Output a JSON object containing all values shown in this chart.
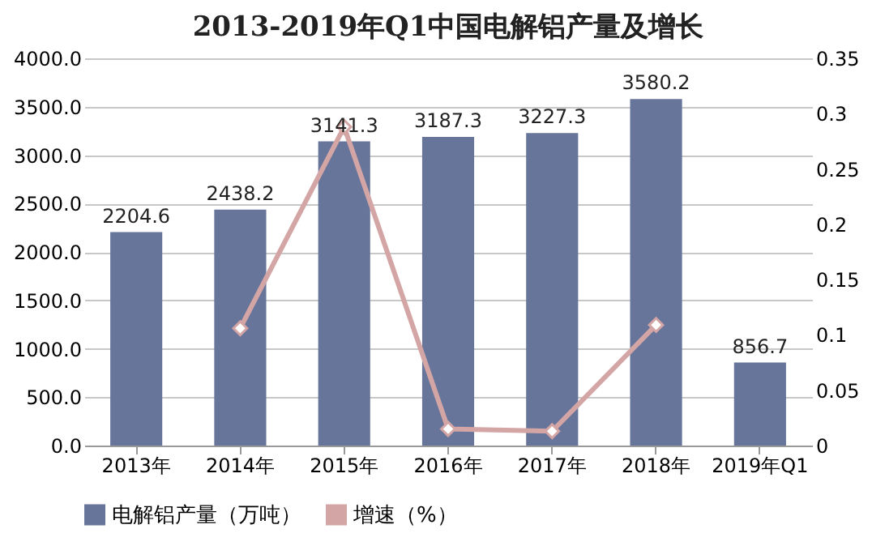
{
  "chart_data": {
    "type": "bar",
    "title": "2013-2019年Q1中国电解铝产量及增长",
    "categories": [
      "2013年",
      "2014年",
      "2015年",
      "2016年",
      "2017年",
      "2018年",
      "2019年Q1"
    ],
    "series": [
      {
        "name": "电解铝产量（万吨）",
        "color": "#67759b",
        "values": [
          2204.6,
          2438.2,
          3141.3,
          3187.3,
          3227.3,
          3580.2,
          856.7
        ],
        "value_labels": [
          "2204.6",
          "2438.2",
          "3141.3",
          "3187.3",
          "3227.3",
          "3580.2",
          "856.7"
        ]
      },
      {
        "name": "增速（%）",
        "color": "#d4a5a5",
        "type": "line",
        "axis": "y2",
        "marker": "diamond",
        "values": [
          null,
          0.106,
          0.288,
          0.015,
          0.013,
          0.109,
          null
        ]
      }
    ],
    "ylim": [
      0,
      4000
    ],
    "yticks": [
      {
        "value": 0,
        "label": "0.0"
      },
      {
        "value": 500,
        "label": "500.0"
      },
      {
        "value": 1000,
        "label": "1000.0"
      },
      {
        "value": 1500,
        "label": "1500.0"
      },
      {
        "value": 2000,
        "label": "2000.0"
      },
      {
        "value": 2500,
        "label": "2500.0"
      },
      {
        "value": 3000,
        "label": "3000.0"
      },
      {
        "value": 3500,
        "label": "3500.0"
      },
      {
        "value": 4000,
        "label": "4000.0"
      }
    ],
    "y2lim": [
      0,
      0.35
    ],
    "y2ticks": [
      0,
      0.05,
      0.1,
      0.15,
      0.2,
      0.25,
      0.3,
      0.35
    ],
    "grid": "y",
    "legend": "bottom"
  }
}
